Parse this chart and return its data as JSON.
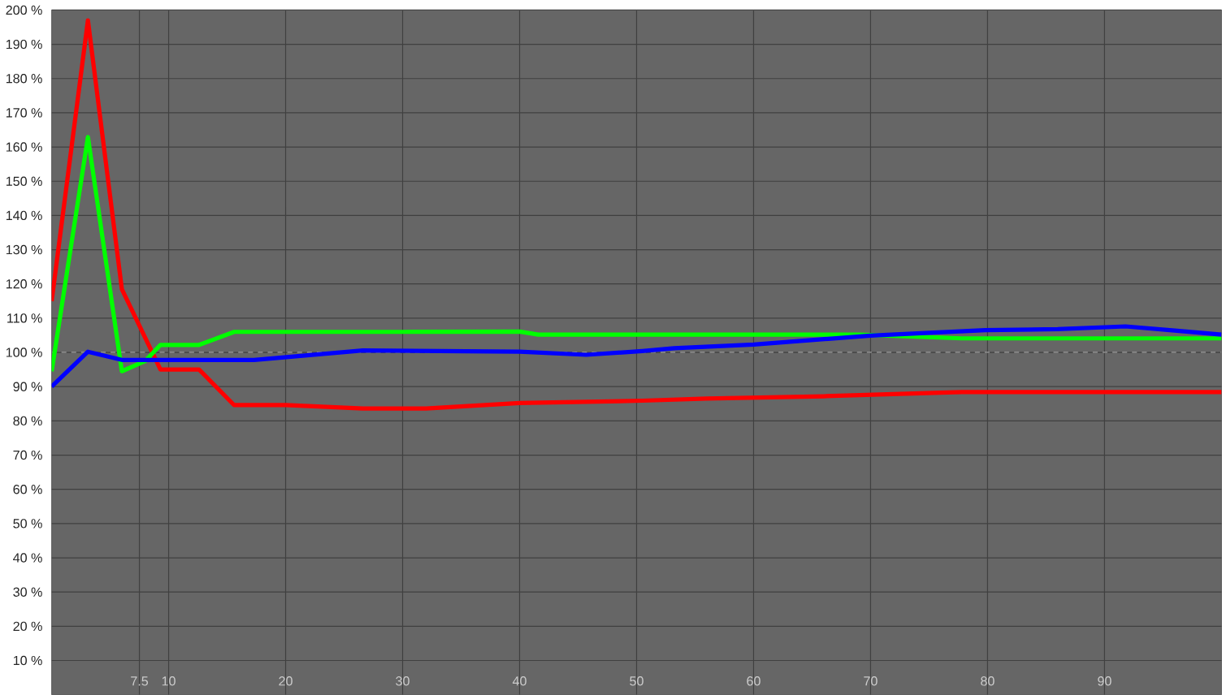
{
  "chart_data": {
    "type": "line",
    "xlim": [
      0,
      100
    ],
    "ylim": [
      0,
      200
    ],
    "xticks": [
      7.5,
      10,
      20,
      30,
      40,
      50,
      60,
      70,
      80,
      90
    ],
    "yticks": [
      {
        "value": 10,
        "label": "10 %"
      },
      {
        "value": 20,
        "label": "20 %"
      },
      {
        "value": 30,
        "label": "30 %"
      },
      {
        "value": 40,
        "label": "40 %"
      },
      {
        "value": 50,
        "label": "50 %"
      },
      {
        "value": 60,
        "label": "60 %"
      },
      {
        "value": 70,
        "label": "70 %"
      },
      {
        "value": 80,
        "label": "80 %"
      },
      {
        "value": 90,
        "label": "90 %"
      },
      {
        "value": 100,
        "label": "100 %"
      },
      {
        "value": 110,
        "label": "110 %"
      },
      {
        "value": 120,
        "label": "120 %"
      },
      {
        "value": 130,
        "label": "130 %"
      },
      {
        "value": 140,
        "label": "140 %"
      },
      {
        "value": 150,
        "label": "150 %"
      },
      {
        "value": 160,
        "label": "160 %"
      },
      {
        "value": 170,
        "label": "170 %"
      },
      {
        "value": 180,
        "label": "180 %"
      },
      {
        "value": 190,
        "label": "190 %"
      },
      {
        "value": 200,
        "label": "200 %"
      }
    ],
    "grid": true,
    "marker": "none",
    "line_style": "solid",
    "ref_lines": [
      {
        "axis": "y",
        "value": 100,
        "color": "#c8c8c8",
        "line_style": "dashed"
      }
    ],
    "series": [
      {
        "color": "#ff0000",
        "x": [
          0,
          3.1,
          6,
          9.3,
          12.6,
          15.6,
          20,
          26.6,
          32,
          40,
          50.5,
          56,
          66,
          77.8,
          88,
          100
        ],
        "values": [
          115,
          197,
          118.5,
          95,
          95,
          84.6,
          84.6,
          83.6,
          83.6,
          85.2,
          85.9,
          86.5,
          87.2,
          88.4,
          88.4,
          88.4
        ]
      },
      {
        "color": "#00ff00",
        "x": [
          0,
          3.1,
          6,
          8,
          9.3,
          12.6,
          15.6,
          20,
          30,
          40,
          41.6,
          50.5,
          60,
          69,
          77.8,
          88,
          100
        ],
        "values": [
          94.5,
          162.9,
          94.5,
          97.5,
          102.2,
          102.2,
          106,
          106,
          106,
          106.1,
          105.2,
          105.2,
          105.2,
          105.2,
          104.1,
          104.1,
          104.1
        ]
      },
      {
        "color": "#0000ff",
        "x": [
          0,
          3.1,
          6,
          10,
          17.3,
          26.6,
          40,
          45.7,
          50.5,
          53.2,
          60,
          70,
          79.8,
          86,
          91.8,
          96,
          100
        ],
        "values": [
          90,
          100.2,
          97.8,
          97.8,
          97.8,
          100.6,
          100.2,
          99.3,
          100.4,
          101.2,
          102.3,
          104.9,
          106.5,
          106.8,
          107.6,
          106.4,
          105.2
        ]
      }
    ]
  }
}
